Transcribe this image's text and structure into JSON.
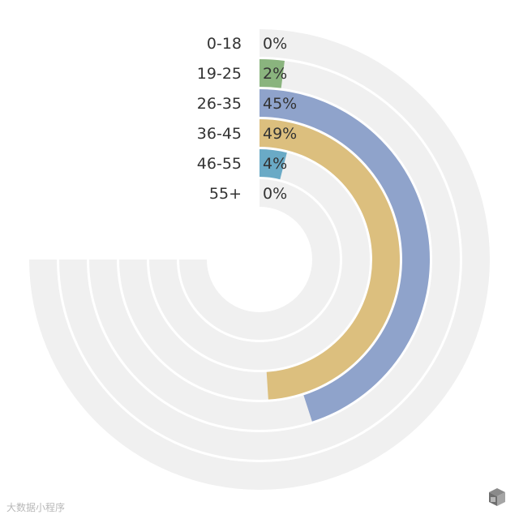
{
  "chart_data": {
    "type": "radial_bar",
    "categories": [
      "0-18",
      "19-25",
      "26-35",
      "36-45",
      "46-55",
      "55+"
    ],
    "values": [
      0,
      2,
      45,
      49,
      4,
      0
    ],
    "value_labels": [
      "0%",
      "2%",
      "45%",
      "49%",
      "4%",
      "0%"
    ],
    "max_value": 75,
    "colors": [
      "#f0f0f0",
      "#8ab47e",
      "#8fa3cb",
      "#dcbf7e",
      "#6aaac6",
      "#f0f0f0"
    ],
    "track_color": "#f0f0f0"
  },
  "watermark": "大数据小程序"
}
